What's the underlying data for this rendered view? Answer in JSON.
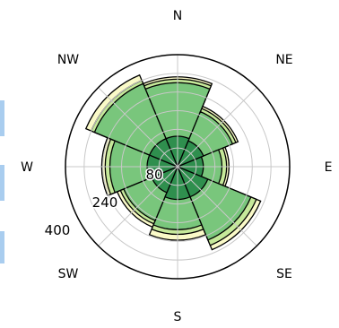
{
  "chart_data": {
    "type": "polar-bar",
    "title": "",
    "direction_labels": [
      "N",
      "NE",
      "E",
      "SE",
      "S",
      "SW",
      "W",
      "NW"
    ],
    "radial_ticks": [
      {
        "value": 80,
        "label": "80"
      },
      {
        "value": 240,
        "label": "240"
      },
      {
        "value": 400,
        "label": "400"
      }
    ],
    "rmax": 480,
    "grid": true,
    "legend": "none",
    "sectors": [
      "N",
      "NE",
      "E",
      "SE",
      "S",
      "SW",
      "W",
      "NW"
    ],
    "series": [
      {
        "color": "#fafac8",
        "values": [
          385,
          280,
          220,
          385,
          315,
          280,
          325,
          425
        ]
      },
      {
        "color": "#c6e99a",
        "values": [
          375,
          270,
          210,
          365,
          290,
          265,
          310,
          400
        ]
      },
      {
        "color": "#79c67c",
        "values": [
          360,
          255,
          190,
          340,
          270,
          250,
          290,
          385
        ]
      },
      {
        "color": "#2f8f4e",
        "values": [
          130,
          120,
          110,
          140,
          140,
          120,
          130,
          130
        ]
      }
    ]
  }
}
